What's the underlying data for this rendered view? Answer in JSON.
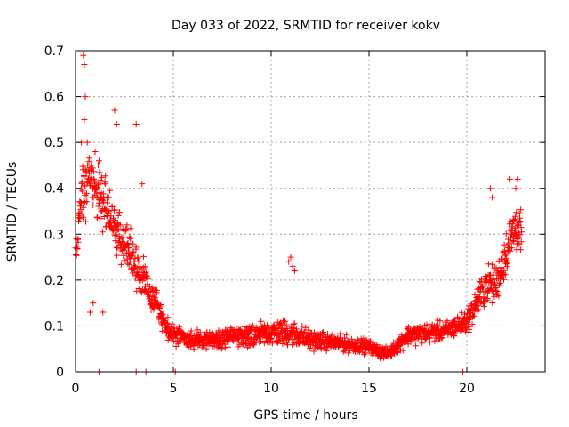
{
  "chart_data": {
    "type": "scatter",
    "title": "Day 033 of 2022, SRMTID for receiver kokv",
    "xlabel": "GPS time / hours",
    "ylabel": "SRMTID / TECUs",
    "xlim": [
      0,
      24
    ],
    "ylim": [
      0,
      0.7
    ],
    "x_ticks": [
      0,
      5,
      10,
      15,
      20
    ],
    "x_tick_labels": [
      "0",
      "5",
      "10",
      "15",
      "20"
    ],
    "y_ticks": [
      0,
      0.1,
      0.2,
      0.3,
      0.4,
      0.5,
      0.6,
      0.7
    ],
    "y_tick_labels": [
      "0",
      "0.1",
      "0.2",
      "0.3",
      "0.4",
      "0.5",
      "0.6",
      "0.7"
    ],
    "grid": true,
    "marker": "+",
    "color": "#ff0000",
    "series": [
      {
        "name": "SRMTID",
        "trend_x": [
          0,
          0.3,
          0.6,
          1.0,
          1.5,
          2.0,
          2.5,
          3.0,
          3.5,
          4.0,
          4.5,
          5.0,
          6.0,
          7.0,
          8.0,
          9.0,
          10.0,
          11.0,
          12.0,
          13.0,
          14.0,
          15.0,
          15.5,
          16.0,
          16.5,
          17.0,
          18.0,
          19.0,
          20.0,
          20.5,
          21.0,
          21.5,
          22.0,
          22.5,
          22.8
        ],
        "trend_y": [
          0.24,
          0.38,
          0.42,
          0.4,
          0.36,
          0.32,
          0.28,
          0.24,
          0.2,
          0.16,
          0.11,
          0.08,
          0.07,
          0.07,
          0.075,
          0.08,
          0.085,
          0.085,
          0.07,
          0.065,
          0.06,
          0.055,
          0.045,
          0.04,
          0.06,
          0.08,
          0.085,
          0.09,
          0.11,
          0.15,
          0.19,
          0.19,
          0.26,
          0.32,
          0.3
        ],
        "spread_y": [
          0.04,
          0.1,
          0.1,
          0.09,
          0.08,
          0.08,
          0.07,
          0.07,
          0.06,
          0.05,
          0.04,
          0.03,
          0.025,
          0.025,
          0.03,
          0.035,
          0.04,
          0.04,
          0.03,
          0.025,
          0.025,
          0.02,
          0.02,
          0.015,
          0.025,
          0.03,
          0.03,
          0.03,
          0.035,
          0.05,
          0.06,
          0.06,
          0.07,
          0.08,
          0.06
        ],
        "extra_points": [
          {
            "x": 0.4,
            "y": 0.69
          },
          {
            "x": 0.45,
            "y": 0.67
          },
          {
            "x": 0.5,
            "y": 0.6
          },
          {
            "x": 0.45,
            "y": 0.55
          },
          {
            "x": 0.3,
            "y": 0.5
          },
          {
            "x": 0.6,
            "y": 0.5
          },
          {
            "x": 1.0,
            "y": 0.48
          },
          {
            "x": 1.2,
            "y": 0.46
          },
          {
            "x": 2.0,
            "y": 0.57
          },
          {
            "x": 2.1,
            "y": 0.54
          },
          {
            "x": 3.1,
            "y": 0.54
          },
          {
            "x": 3.4,
            "y": 0.41
          },
          {
            "x": 11.0,
            "y": 0.25
          },
          {
            "x": 11.1,
            "y": 0.23
          },
          {
            "x": 10.9,
            "y": 0.24
          },
          {
            "x": 11.2,
            "y": 0.22
          },
          {
            "x": 21.2,
            "y": 0.4
          },
          {
            "x": 21.3,
            "y": 0.38
          },
          {
            "x": 22.2,
            "y": 0.42
          },
          {
            "x": 22.6,
            "y": 0.42
          },
          {
            "x": 22.5,
            "y": 0.4
          },
          {
            "x": 1.2,
            "y": 0.0
          },
          {
            "x": 3.1,
            "y": 0.0
          },
          {
            "x": 3.6,
            "y": 0.0
          },
          {
            "x": 5.1,
            "y": 0.0
          },
          {
            "x": 19.8,
            "y": 0.0
          },
          {
            "x": 1.4,
            "y": 0.13
          },
          {
            "x": 0.75,
            "y": 0.13
          },
          {
            "x": 0.9,
            "y": 0.15
          }
        ]
      }
    ]
  }
}
